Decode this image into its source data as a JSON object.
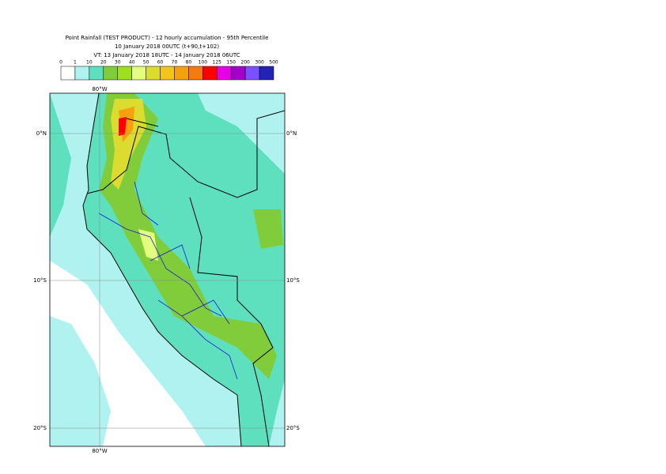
{
  "header": {
    "lines": [
      "Point Rainfall (TEST PRODUCT) - 12 hourly accumulation - 95th Percentile",
      "10 January 2018 00UTC (t+90,t+102)",
      "VT: 13 January 2018 18UTC - 14 January 2018 06UTC"
    ]
  },
  "legend": {
    "labels": [
      "0",
      "1",
      "10",
      "20",
      "30",
      "40",
      "50",
      "60",
      "70",
      "80",
      "100",
      "125",
      "150",
      "200",
      "300",
      "500"
    ],
    "colors": [
      "#ffffff",
      "#b0f2f0",
      "#5ee0bf",
      "#80cc3a",
      "#9ee01e",
      "#e4ff80",
      "#dcdc30",
      "#f2c41c",
      "#f5a00e",
      "#f57a10",
      "#ff0000",
      "#e600e6",
      "#a000c8",
      "#7a50ff",
      "#2222b4",
      "#0e0e5a"
    ]
  },
  "map": {
    "lon_label": "80°W",
    "lat_labels": [
      "0°N",
      "10°S",
      "20°S"
    ]
  }
}
